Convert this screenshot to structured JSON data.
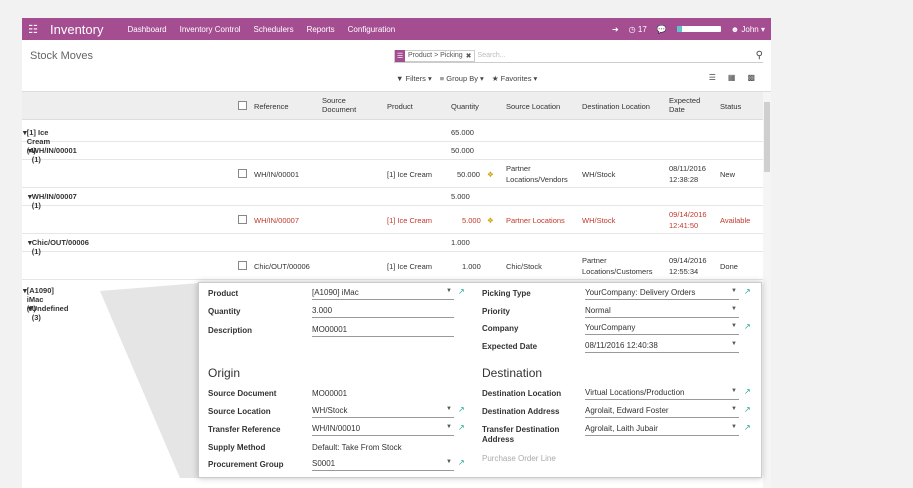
{
  "navbar": {
    "brand": "Inventory",
    "menu": [
      "Dashboard",
      "Inventory Control",
      "Schedulers",
      "Reports",
      "Configuration"
    ],
    "notifications": "17",
    "progress": 0.12,
    "user": "John",
    "accent": "#a54d91"
  },
  "control_panel": {
    "title": "Stock Moves",
    "facet": "Product > Picking",
    "search_placeholder": "Search...",
    "filters": "Filters",
    "group_by": "Group By",
    "favorites": "Favorites"
  },
  "columns": [
    "Reference",
    "Source Document",
    "Product",
    "Quantity",
    "Source Location",
    "Destination Location",
    "Expected Date",
    "Status"
  ],
  "rows": {
    "g1": {
      "label": "[1] Ice Cream (4)",
      "qty": "65.000"
    },
    "g1a": {
      "label": "WH/IN/00001 (1)",
      "qty": "50.000"
    },
    "r1": {
      "ref": "WH/IN/00001",
      "product": "[1] Ice Cream",
      "qty": "50.000",
      "src1": "Partner",
      "src2": "Locations/Vendors",
      "dest": "WH/Stock",
      "date1": "08/11/2016",
      "date2": "12:38:28",
      "status": "New"
    },
    "g1b": {
      "label": "WH/IN/00007 (1)",
      "qty": "5.000"
    },
    "r2": {
      "ref": "WH/IN/00007",
      "product": "[1] Ice Cream",
      "qty": "5.000",
      "src": "Partner Locations",
      "dest": "WH/Stock",
      "date1": "09/14/2016",
      "date2": "12:41:50",
      "status": "Available"
    },
    "g1c": {
      "label": "Chic/OUT/00006 (1)",
      "qty": "1.000"
    },
    "r3": {
      "ref": "Chic/OUT/00006",
      "product": "[1] Ice Cream",
      "qty": "1.000",
      "src": "Chic/Stock",
      "dest1": "Partner",
      "dest2": "Locations/Customers",
      "date1": "09/14/2016",
      "date2": "12:55:34",
      "status": "Done"
    },
    "g2": {
      "label": "[A1090] iMac (7)"
    },
    "g2a": {
      "label": "Undefined (3)"
    }
  },
  "form": {
    "product_label": "Product",
    "product": "[A1090] iMac",
    "quantity_label": "Quantity",
    "quantity": "3.000",
    "description_label": "Description",
    "description": "MO00001",
    "picking_type_label": "Picking Type",
    "picking_type": "YourCompany: Delivery Orders",
    "priority_label": "Priority",
    "priority": "Normal",
    "company_label": "Company",
    "company": "YourCompany",
    "expected_date_label": "Expected Date",
    "expected_date": "08/11/2016 12:40:38",
    "origin_title": "Origin",
    "source_document_label": "Source Document",
    "source_document": "MO00001",
    "source_location_label": "Source Location",
    "source_location": "WH/Stock",
    "transfer_reference_label": "Transfer Reference",
    "transfer_reference": "WH/IN/00010",
    "supply_method_label": "Supply Method",
    "supply_method": "Default: Take From Stock",
    "procurement_group_label": "Procurement Group",
    "procurement_group": "S0001",
    "destination_title": "Destination",
    "destination_location_label": "Destination Location",
    "destination_location": "Virtual Locations/Production",
    "destination_address_label": "Destination Address",
    "destination_address": "Agrolait, Edward Foster",
    "transfer_destination_label": "Transfer Destination Address",
    "transfer_destination": "Agrolait, Laith Jubair",
    "purchase_order_line_label": "Purchase Order Line"
  }
}
